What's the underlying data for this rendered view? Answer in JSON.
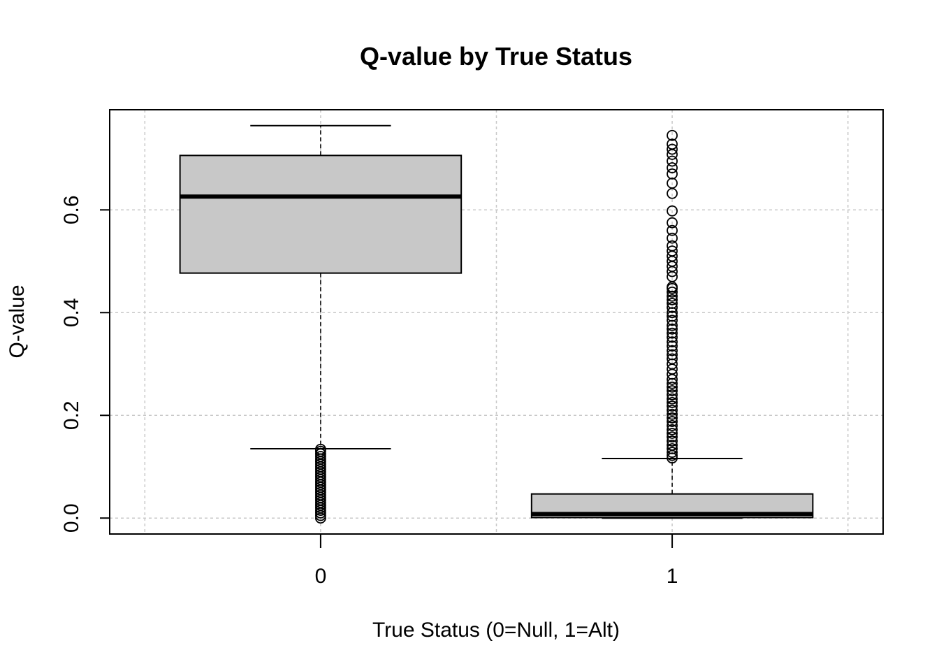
{
  "chart_data": {
    "type": "boxplot",
    "title": "Q-value by True Status",
    "xlabel": "True Status (0=Null, 1=Alt)",
    "ylabel": "Q-value",
    "categories": [
      "0",
      "1"
    ],
    "y_ticks": [
      "0.0",
      "0.2",
      "0.4",
      "0.6"
    ],
    "y_tick_values": [
      0.0,
      0.2,
      0.4,
      0.6
    ],
    "ylim": [
      -0.031,
      0.795
    ],
    "grid": true,
    "grid_style": "dotted",
    "box_fill": "#c8c8c8",
    "series": [
      {
        "category": "0",
        "whisker_low": 0.135,
        "q1": 0.477,
        "median": 0.626,
        "q3": 0.706,
        "whisker_high": 0.764,
        "outliers": [
          0.0,
          0.005,
          0.01,
          0.015,
          0.02,
          0.025,
          0.03,
          0.035,
          0.04,
          0.045,
          0.05,
          0.055,
          0.06,
          0.065,
          0.07,
          0.075,
          0.08,
          0.085,
          0.09,
          0.095,
          0.1,
          0.105,
          0.11,
          0.115,
          0.12,
          0.125,
          0.13,
          0.134
        ]
      },
      {
        "category": "1",
        "whisker_low": 0.0,
        "q1": 0.001,
        "median": 0.008,
        "q3": 0.047,
        "whisker_high": 0.116,
        "outliers": [
          0.117,
          0.122,
          0.128,
          0.135,
          0.142,
          0.15,
          0.158,
          0.165,
          0.172,
          0.18,
          0.188,
          0.195,
          0.202,
          0.21,
          0.218,
          0.225,
          0.232,
          0.24,
          0.248,
          0.255,
          0.262,
          0.27,
          0.28,
          0.29,
          0.3,
          0.31,
          0.318,
          0.326,
          0.335,
          0.343,
          0.352,
          0.36,
          0.368,
          0.375,
          0.385,
          0.393,
          0.4,
          0.41,
          0.418,
          0.425,
          0.432,
          0.44,
          0.447,
          0.45,
          0.47,
          0.48,
          0.49,
          0.5,
          0.51,
          0.52,
          0.53,
          0.545,
          0.56,
          0.575,
          0.598,
          0.632,
          0.652,
          0.67,
          0.682,
          0.695,
          0.708,
          0.718,
          0.728,
          0.745
        ]
      }
    ]
  }
}
